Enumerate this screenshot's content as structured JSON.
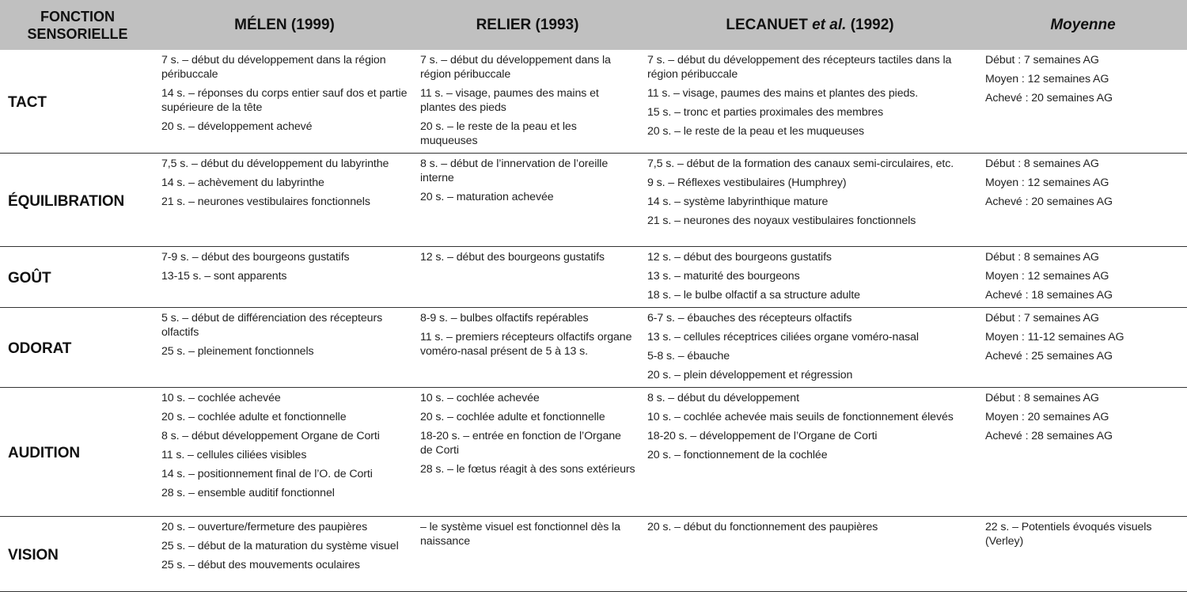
{
  "header": {
    "col0": "FONCTION SENSORIELLE",
    "col1": "MÉLEN (1999)",
    "col2": "RELIER (1993)",
    "col3_name": "LECANUET ",
    "col3_etal": "et al.",
    "col3_year": " (1992)",
    "col4": "Moyenne"
  },
  "rows": [
    {
      "label": "TACT",
      "melen": [
        "7 s. – début du développement dans la région péribuccale",
        "14 s. – réponses du corps entier sauf dos et partie supérieure de la tête",
        "20 s. – développement achevé"
      ],
      "relier": [
        "7 s. – début du développement dans la région péribuccale",
        "11 s. – visage, paumes des mains et plantes des pieds",
        "20 s. – le reste de la peau et les muqueuses"
      ],
      "lecanuet": [
        "7 s. – début du développement des récepteurs tactiles dans la région péribuccale",
        "11 s. – visage, paumes des mains et plantes des pieds.",
        "15 s. – tronc et parties proximales des membres",
        "20 s. – le reste de la peau et les muqueuses"
      ],
      "moyenne": [
        "Début : 7 semaines AG",
        "Moyen : 12 semaines AG",
        "Achevé : 20 semaines AG"
      ]
    },
    {
      "label": "ÉQUILIBRATION",
      "melen": [
        "7,5 s. – début du développement du labyrinthe",
        "14 s. – achèvement du labyrinthe",
        "21 s. – neurones vestibulaires fonctionnels"
      ],
      "relier": [
        "8 s. – début de l’innervation de l’oreille interne",
        "20 s. – maturation achevée"
      ],
      "lecanuet": [
        "7,5 s. – début de la formation des canaux semi-circulaires, etc.",
        "9 s. – Réflexes vestibulaires (Humphrey)",
        "14 s. – système labyrinthique mature",
        "21 s. – neurones des noyaux vestibulaires fonctionnels"
      ],
      "moyenne": [
        "Début : 8 semaines AG",
        "Moyen : 12 semaines AG",
        "Achevé : 20 semaines AG"
      ]
    },
    {
      "label": "GOÛT",
      "melen": [
        "7-9 s. – début des bourgeons gustatifs",
        "13-15 s. – sont apparents"
      ],
      "relier": [
        "12 s. – début des bourgeons gustatifs"
      ],
      "lecanuet": [
        "12 s. – début des bourgeons gustatifs",
        "13 s. – maturité des bourgeons",
        "18 s. – le bulbe olfactif a sa structure adulte"
      ],
      "moyenne": [
        "Début : 8 semaines AG",
        "Moyen : 12 semaines AG",
        "Achevé : 18 semaines AG"
      ]
    },
    {
      "label": "ODORAT",
      "melen": [
        "5 s. – début de différenciation des récepteurs olfactifs",
        "25 s. – pleinement fonctionnels"
      ],
      "relier": [
        "8-9 s. – bulbes olfactifs repérables",
        "11 s. – premiers récepteurs olfactifs organe voméro-nasal présent de 5 à 13 s."
      ],
      "lecanuet": [
        "6-7 s. – ébauches des récepteurs olfactifs",
        "13 s. – cellules réceptrices ciliées organe voméro-nasal",
        "5-8 s. – ébauche",
        "20 s. – plein développement et régression"
      ],
      "moyenne": [
        "Début : 7 semaines AG",
        "Moyen : 11-12 semaines AG",
        "Achevé : 25 semaines AG"
      ]
    },
    {
      "label": "AUDITION",
      "melen": [
        "10 s. – cochlée achevée",
        "20 s. – cochlée adulte et fonctionnelle",
        "8 s. – début développement Organe de Corti",
        "11 s. – cellules ciliées visibles",
        "14 s. – positionnement final de l’O. de Corti",
        "28 s. – ensemble auditif fonctionnel"
      ],
      "relier": [
        "10 s. – cochlée achevée",
        "20 s. – cochlée adulte et fonctionnelle",
        "18-20 s. – entrée en fonction de l’Organe de Corti",
        "28 s. – le fœtus réagit à des sons extérieurs"
      ],
      "lecanuet": [
        "8 s. – début du développement",
        "10 s. – cochlée achevée mais seuils de fonctionnement élevés",
        "18-20 s. – développement de l’Organe de Corti",
        "20 s. – fonctionnement de la cochlée"
      ],
      "moyenne": [
        "Début : 8 semaines AG",
        "Moyen : 20 semaines AG",
        "Achevé : 28 semaines AG"
      ]
    },
    {
      "label": "VISION",
      "melen": [
        "20 s. – ouverture/fermeture des paupières",
        "25 s. – début de la maturation du système visuel",
        "25 s. – début des mouvements oculaires"
      ],
      "relier": [
        "– le système visuel est fonctionnel dès la naissance"
      ],
      "lecanuet": [
        "20 s. – début du fonctionnement des paupières"
      ],
      "moyenne": [
        "22 s. – Potentiels évoqués visuels (Verley)"
      ]
    }
  ]
}
